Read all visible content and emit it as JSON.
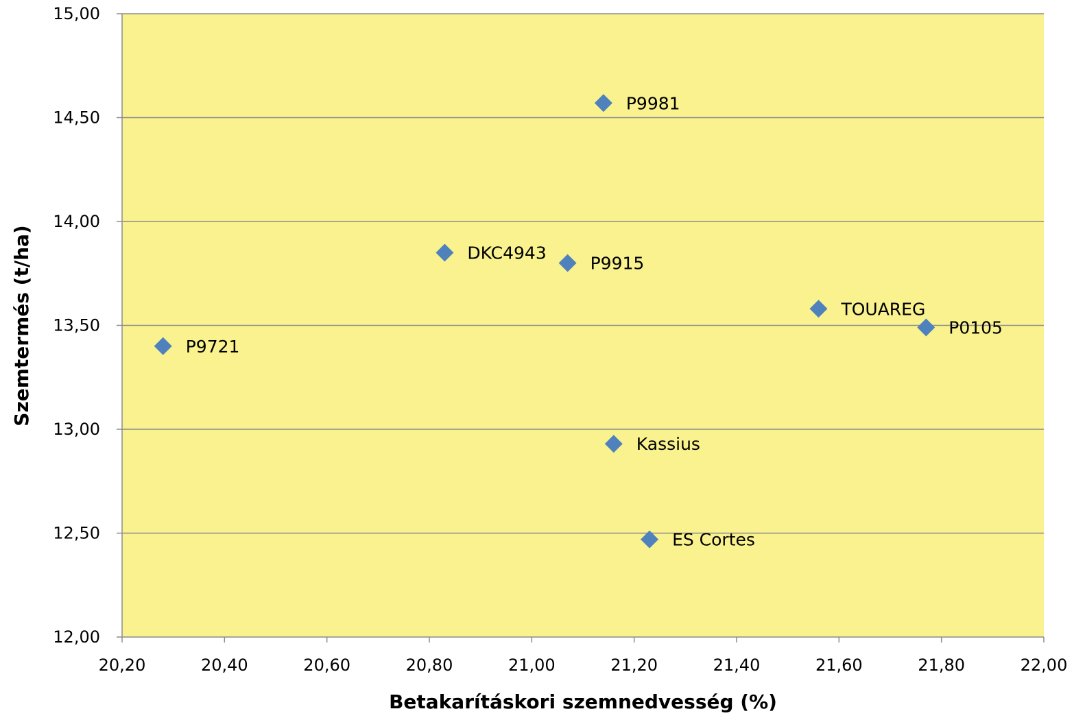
{
  "chart_data": {
    "type": "scatter",
    "title": "",
    "xlabel": "Betakarításkori szemnedvesség (%)",
    "ylabel": "Szemtermés (t/ha)",
    "xlim": [
      20.2,
      22.0
    ],
    "ylim": [
      12.0,
      15.0
    ],
    "x_ticks": [
      "20,20",
      "20,40",
      "20,60",
      "20,80",
      "21,00",
      "21,20",
      "21,40",
      "21,60",
      "21,80",
      "22,00"
    ],
    "y_ticks": [
      "12,00",
      "12,50",
      "13,00",
      "13,50",
      "14,00",
      "14,50",
      "15,00"
    ],
    "grid": "horizontal",
    "legend": "none",
    "colors": {
      "plot_background": "#F9F28E",
      "marker": "#4F81BD",
      "gridline": "#8C8C8C",
      "axis": "#8C8C8C"
    },
    "points": [
      {
        "label": "P9981",
        "x": 21.14,
        "y": 14.57
      },
      {
        "label": "DKC4943",
        "x": 20.83,
        "y": 13.85
      },
      {
        "label": "P9915",
        "x": 21.07,
        "y": 13.8
      },
      {
        "label": "TOUAREG",
        "x": 21.56,
        "y": 13.58
      },
      {
        "label": "P0105",
        "x": 21.77,
        "y": 13.49
      },
      {
        "label": "P9721",
        "x": 20.28,
        "y": 13.4
      },
      {
        "label": "Kassius",
        "x": 21.16,
        "y": 12.93
      },
      {
        "label": "ES Cortes",
        "x": 21.23,
        "y": 12.47
      }
    ]
  }
}
